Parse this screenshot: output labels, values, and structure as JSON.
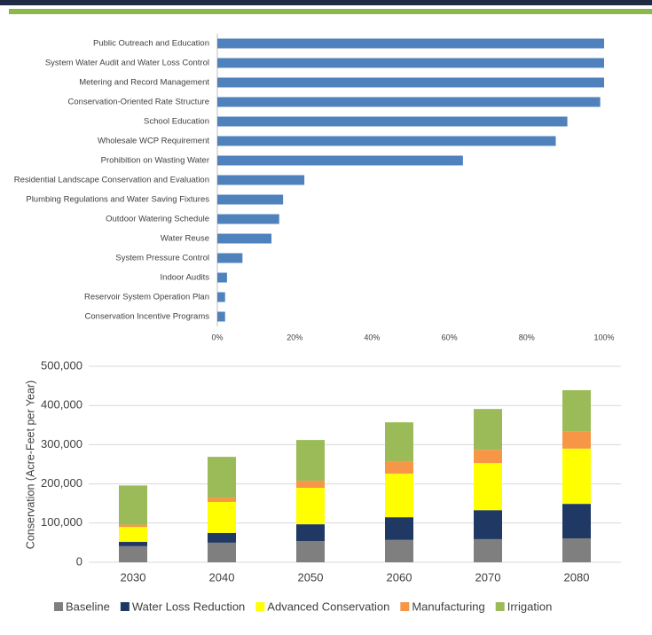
{
  "chart_data": [
    {
      "type": "hbar",
      "categories": [
        "Public Outreach and Education",
        "System Water Audit and Water Loss Control",
        "Metering and Record Management",
        "Conservation-Oriented Rate Structure",
        "School Education",
        "Wholesale WCP Requirement",
        "Prohibition on Wasting Water",
        "Residential Landscape Conservation and Evaluation",
        "Plumbing Regulations and Water Saving Fixtures",
        "Outdoor Watering Schedule",
        "Water Reuse",
        "System Pressure Control",
        "Indoor Audits",
        "Reservoir System Operation Plan",
        "Conservation Incentive Programs"
      ],
      "values": [
        100,
        100,
        100,
        99,
        90.5,
        87.5,
        63.5,
        22.5,
        17,
        16,
        14,
        6.5,
        2.5,
        2,
        2
      ],
      "color": "#4f81bd",
      "xlim": [
        0,
        100
      ],
      "xticks": [
        {
          "value": 0,
          "label": "0%"
        },
        {
          "value": 20,
          "label": "20%"
        },
        {
          "value": 40,
          "label": "40%"
        },
        {
          "value": 60,
          "label": "60%"
        },
        {
          "value": 80,
          "label": "80%"
        },
        {
          "value": 100,
          "label": "100%"
        }
      ]
    },
    {
      "type": "stacked_bar",
      "y_label": "Conservation (Acre-Feet per Year)",
      "categories": [
        "2030",
        "2040",
        "2050",
        "2060",
        "2070",
        "2080"
      ],
      "series": [
        {
          "name": "Baseline",
          "color": "#7f7f7f",
          "values": [
            41000,
            50000,
            54000,
            57000,
            59000,
            61000
          ]
        },
        {
          "name": "Water Loss Reduction",
          "color": "#203864",
          "values": [
            11000,
            25000,
            43000,
            58000,
            74000,
            88000
          ]
        },
        {
          "name": "Advanced Conservation",
          "color": "#ffff00",
          "values": [
            38000,
            79000,
            93000,
            111000,
            120000,
            141000
          ]
        },
        {
          "name": "Manufacturing",
          "color": "#f79646",
          "values": [
            6000,
            11000,
            18000,
            30000,
            34000,
            43000
          ]
        },
        {
          "name": "Irrigation",
          "color": "#9bbb59",
          "values": [
            100000,
            104000,
            104000,
            101000,
            104000,
            106000
          ]
        }
      ],
      "ylim": [
        0,
        500000
      ],
      "yticks": [
        0,
        {
          "value": 100000,
          "label": "100,000"
        },
        {
          "value": 200000,
          "label": "200,000"
        },
        {
          "value": 300000,
          "label": "300,000"
        },
        {
          "value": 400000,
          "label": "400,000"
        },
        {
          "value": 500000,
          "label": "500,000"
        }
      ],
      "grid": true
    }
  ]
}
